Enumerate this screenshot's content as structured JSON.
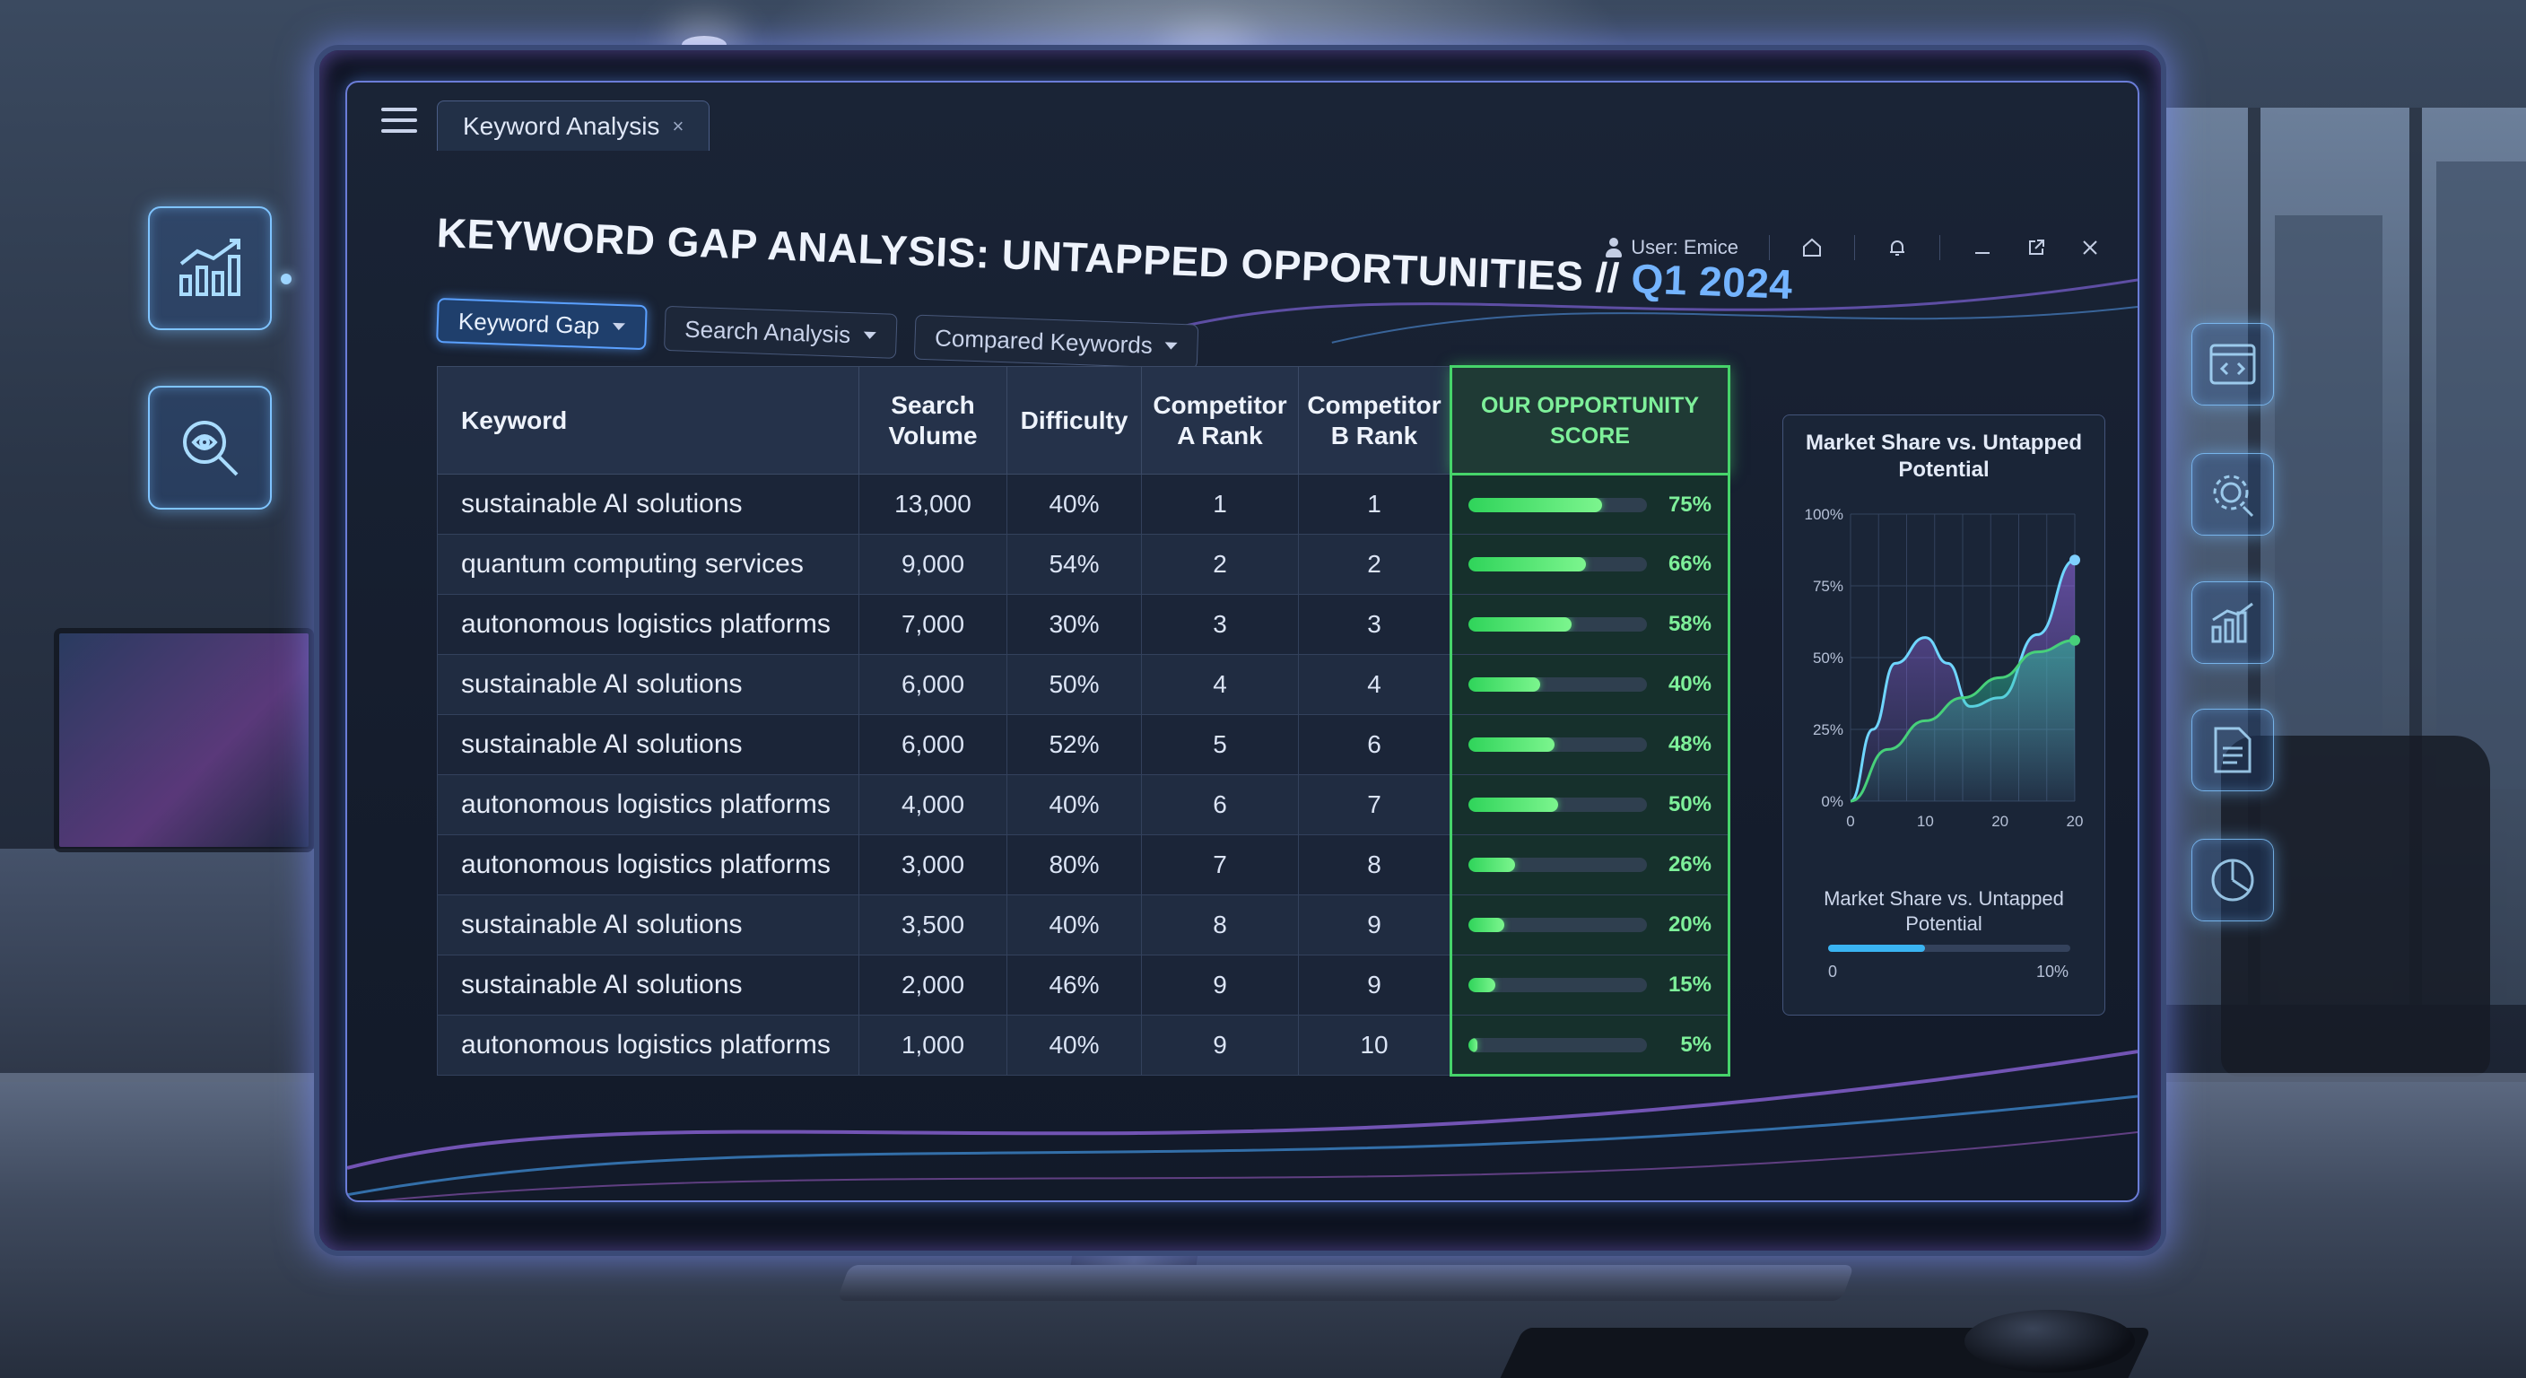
{
  "tab": {
    "label": "Keyword Analysis",
    "close": "×"
  },
  "header": {
    "title_main": "KEYWORD GAP ANALYSIS: UNTAPPED OPPORTUNITIES // ",
    "title_accent": "Q1 2024",
    "user": "User: Emice"
  },
  "filters": [
    {
      "label": "Keyword Gap",
      "active": true
    },
    {
      "label": "Search Analysis",
      "active": false
    },
    {
      "label": "Compared Keywords",
      "active": false
    }
  ],
  "table": {
    "columns": [
      "Keyword",
      "Search Volume",
      "Difficulty",
      "Competitor A Rank",
      "Competitor B Rank",
      "OUR OPPORTUNITY SCORE"
    ],
    "rows": [
      {
        "keyword": "sustainable AI solutions",
        "volume": "13,000",
        "difficulty": "40%",
        "comp_a": "1",
        "comp_b": "1",
        "score": 75,
        "score_label": "75%"
      },
      {
        "keyword": "quantum computing services",
        "volume": "9,000",
        "difficulty": "54%",
        "comp_a": "2",
        "comp_b": "2",
        "score": 66,
        "score_label": "66%"
      },
      {
        "keyword": "autonomous logistics platforms",
        "volume": "7,000",
        "difficulty": "30%",
        "comp_a": "3",
        "comp_b": "3",
        "score": 58,
        "score_label": "58%"
      },
      {
        "keyword": "sustainable AI solutions",
        "volume": "6,000",
        "difficulty": "50%",
        "comp_a": "4",
        "comp_b": "4",
        "score": 40,
        "score_label": "40%"
      },
      {
        "keyword": "sustainable AI solutions",
        "volume": "6,000",
        "difficulty": "52%",
        "comp_a": "5",
        "comp_b": "6",
        "score": 48,
        "score_label": "48%"
      },
      {
        "keyword": "autonomous logistics platforms",
        "volume": "4,000",
        "difficulty": "40%",
        "comp_a": "6",
        "comp_b": "7",
        "score": 50,
        "score_label": "50%"
      },
      {
        "keyword": "autonomous logistics platforms",
        "volume": "3,000",
        "difficulty": "80%",
        "comp_a": "7",
        "comp_b": "8",
        "score": 26,
        "score_label": "26%"
      },
      {
        "keyword": "sustainable AI solutions",
        "volume": "3,500",
        "difficulty": "40%",
        "comp_a": "8",
        "comp_b": "9",
        "score": 20,
        "score_label": "20%"
      },
      {
        "keyword": "sustainable AI solutions",
        "volume": "2,000",
        "difficulty": "46%",
        "comp_a": "9",
        "comp_b": "9",
        "score": 15,
        "score_label": "15%"
      },
      {
        "keyword": "autonomous logistics platforms",
        "volume": "1,000",
        "difficulty": "40%",
        "comp_a": "9",
        "comp_b": "10",
        "score": 5,
        "score_label": "5%"
      }
    ]
  },
  "chart_panel": {
    "subtitle": "Market Share vs. Untapped Potential",
    "range_min": "0",
    "range_max": "10%",
    "range_fill": 0.4
  },
  "chart_data": {
    "type": "area",
    "title": "Market Share vs. Untapped Potential",
    "xlabel": "",
    "ylabel": "",
    "x_ticks": [
      "0",
      "10",
      "20",
      "20"
    ],
    "y_ticks": [
      "0%",
      "25%",
      "50%",
      "75%",
      "100%"
    ],
    "ylim": [
      0,
      100
    ],
    "grid": true,
    "series": [
      {
        "color": "#9b6cf0",
        "x": [
          0,
          3,
          6,
          10,
          13,
          16,
          20,
          25,
          30
        ],
        "y": [
          0,
          25,
          48,
          57,
          48,
          33,
          36,
          58,
          84
        ]
      },
      {
        "color": "#47d07a",
        "x": [
          0,
          5,
          10,
          15,
          20,
          25,
          30
        ],
        "y": [
          0,
          18,
          28,
          36,
          43,
          52,
          56
        ]
      }
    ]
  },
  "side_icons": {
    "left": [
      "trend-chart-icon",
      "search-analytics-icon"
    ],
    "right": [
      "code-window-icon",
      "gear-workflow-icon",
      "bar-chart-icon",
      "document-icon",
      "pie-chart-icon"
    ]
  }
}
